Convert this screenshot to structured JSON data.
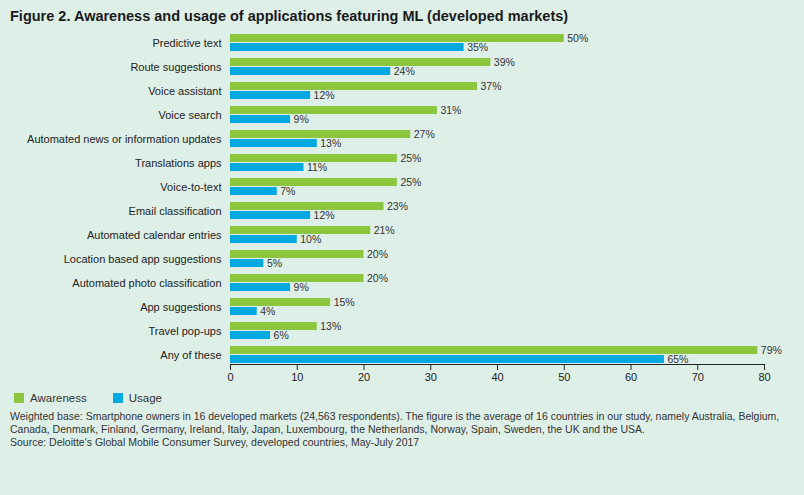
{
  "chart_data": {
    "type": "bar",
    "orientation": "horizontal",
    "title": "Figure 2. Awareness and usage of applications featuring ML (developed markets)",
    "categories": [
      "Predictive text",
      "Route suggestions",
      "Voice assistant",
      "Voice search",
      "Automated news or information updates",
      "Translations apps",
      "Voice-to-text",
      "Email classification",
      "Automated calendar entries",
      "Location based app suggestions",
      "Automated photo classification",
      "App suggestions",
      "Travel pop-ups",
      "Any of these"
    ],
    "series": [
      {
        "name": "Awareness",
        "color": "#8cc63f",
        "values": [
          50,
          39,
          37,
          31,
          27,
          25,
          25,
          23,
          21,
          20,
          20,
          15,
          13,
          79
        ],
        "value_labels": [
          "50%",
          "39%",
          "37%",
          "31%",
          "27%",
          "25%",
          "25%",
          "23%",
          "21%",
          "20%",
          "20%",
          "15%",
          "13%",
          "79%"
        ]
      },
      {
        "name": "Usage",
        "color": "#00a9e0",
        "values": [
          35,
          24,
          12,
          9,
          13,
          11,
          7,
          12,
          10,
          5,
          9,
          4,
          6,
          65
        ],
        "value_labels": [
          "35%",
          "24%",
          "12%",
          "9%",
          "13%",
          "11%",
          "7%",
          "12%",
          "10%",
          "5%",
          "9%",
          "4%",
          "6%",
          "65%"
        ]
      }
    ],
    "xlim": [
      0,
      80
    ],
    "xticks": [
      0,
      10,
      20,
      30,
      40,
      50,
      60,
      70,
      80
    ],
    "grid": false,
    "data_labels": true,
    "legend": "bottom-left",
    "caption": "Weighted base: Smartphone owners in 16 developed markets (24,563 respondents). The figure is the average of 16 countries in our study, namely Australia, Belgium, Canada, Denmark, Finland, Germany, Ireland, Italy, Japan, Luxembourg, the Netherlands, Norway, Spain, Sweden, the UK and the USA.",
    "source": "Source: Deloitte's Global Mobile Consumer Survey, developed countries, May-July 2017"
  }
}
